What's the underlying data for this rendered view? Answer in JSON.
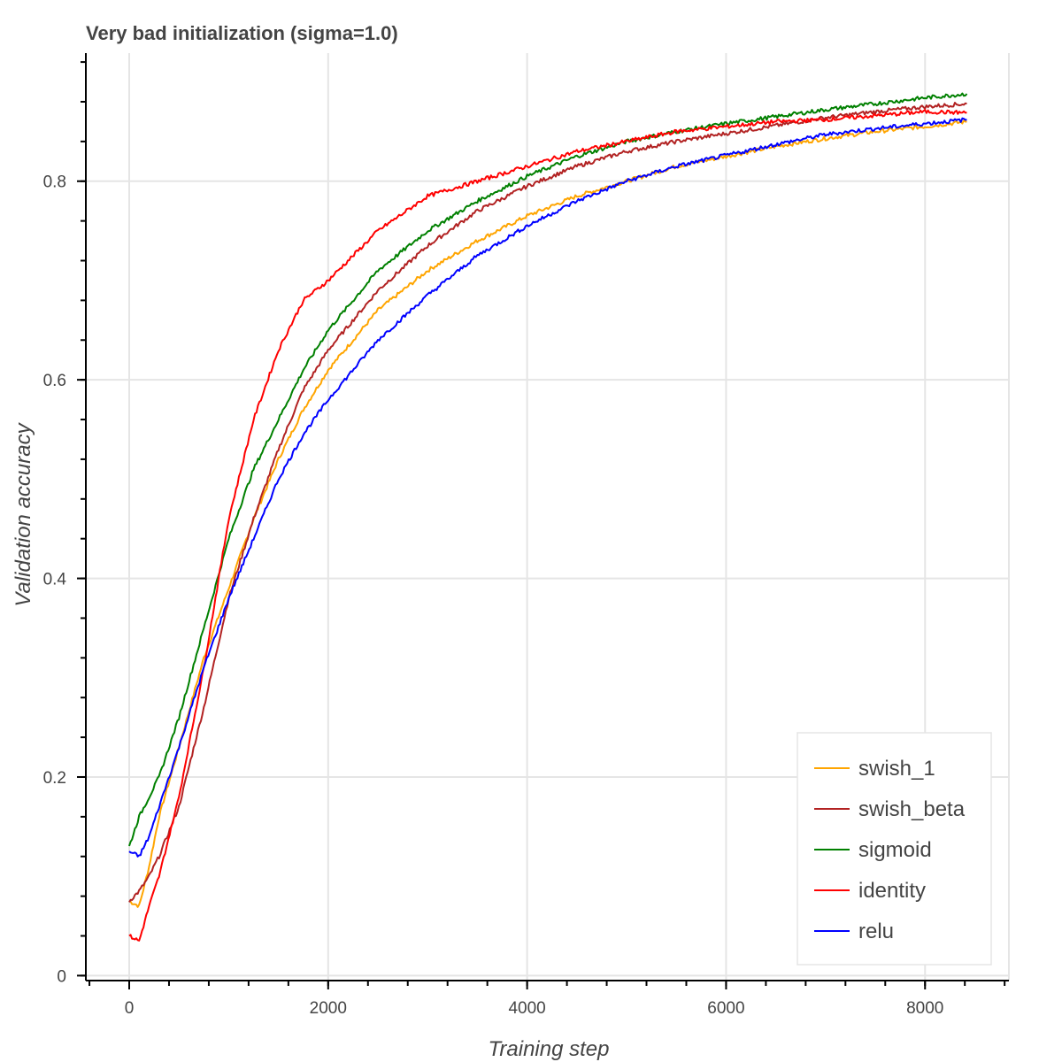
{
  "chart_data": {
    "type": "line",
    "title": "Very bad initialization (sigma=1.0)",
    "xlabel": "Training step",
    "ylabel": "Validation accuracy",
    "xlim": [
      -436,
      8843
    ],
    "ylim": [
      -0.005,
      0.929
    ],
    "xticks": [
      0,
      2000,
      4000,
      6000,
      8000
    ],
    "xtick_labels": [
      "0",
      "2000",
      "4000",
      "6000",
      "8000"
    ],
    "yticks": [
      0,
      0.2,
      0.4,
      0.6,
      0.8
    ],
    "ytick_labels": [
      "0",
      "0.2",
      "0.4",
      "0.6",
      "0.8"
    ],
    "x_minor_step": 400,
    "y_minor_step": 0.04,
    "grid": true,
    "legend_position": "bottom-right",
    "x": [
      0,
      100,
      200,
      300,
      500,
      750,
      1000,
      1250,
      1500,
      1750,
      2000,
      2500,
      3000,
      3500,
      4000,
      4500,
      5000,
      5500,
      6000,
      6500,
      7000,
      7500,
      8000,
      8420
    ],
    "series": [
      {
        "name": "swish_1",
        "color": "#ffa500",
        "values": [
          0.075,
          0.07,
          0.11,
          0.16,
          0.23,
          0.32,
          0.39,
          0.46,
          0.52,
          0.57,
          0.61,
          0.67,
          0.71,
          0.74,
          0.765,
          0.785,
          0.8,
          0.815,
          0.825,
          0.835,
          0.843,
          0.85,
          0.855,
          0.86
        ]
      },
      {
        "name": "swish_beta",
        "color": "#b22222",
        "values": [
          0.075,
          0.085,
          0.1,
          0.12,
          0.17,
          0.27,
          0.38,
          0.46,
          0.53,
          0.59,
          0.63,
          0.69,
          0.735,
          0.77,
          0.795,
          0.815,
          0.83,
          0.84,
          0.848,
          0.856,
          0.864,
          0.87,
          0.875,
          0.878
        ]
      },
      {
        "name": "sigmoid",
        "color": "#008000",
        "values": [
          0.13,
          0.16,
          0.18,
          0.2,
          0.26,
          0.35,
          0.44,
          0.51,
          0.56,
          0.61,
          0.65,
          0.71,
          0.75,
          0.78,
          0.805,
          0.825,
          0.84,
          0.85,
          0.858,
          0.865,
          0.872,
          0.878,
          0.884,
          0.888
        ]
      },
      {
        "name": "identity",
        "color": "#ff0000",
        "values": [
          0.04,
          0.035,
          0.07,
          0.1,
          0.18,
          0.31,
          0.46,
          0.56,
          0.63,
          0.68,
          0.7,
          0.75,
          0.785,
          0.8,
          0.815,
          0.83,
          0.84,
          0.85,
          0.855,
          0.86,
          0.862,
          0.866,
          0.87,
          0.869
        ]
      },
      {
        "name": "relu",
        "color": "#0000ff",
        "values": [
          0.125,
          0.12,
          0.14,
          0.17,
          0.23,
          0.31,
          0.38,
          0.44,
          0.5,
          0.545,
          0.58,
          0.64,
          0.685,
          0.725,
          0.755,
          0.78,
          0.8,
          0.815,
          0.826,
          0.837,
          0.847,
          0.853,
          0.858,
          0.862
        ]
      }
    ]
  }
}
